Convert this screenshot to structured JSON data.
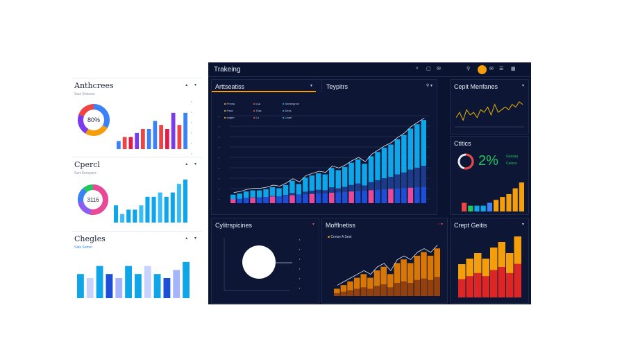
{
  "left": {
    "p1": {
      "title": "Anthcrees",
      "sub": "Sact Sntceas",
      "controls": "▴ ▾",
      "donut_label": "80%"
    },
    "p2": {
      "title": "Cpercl",
      "sub": "Sart Snncpers",
      "controls": "▴ ▾",
      "donut_label": "3116"
    },
    "p3": {
      "title": "Chegles",
      "legend": "Sats   Semer",
      "controls": "▴ ▾"
    }
  },
  "dash": {
    "title": "Trakeing",
    "header_icons": [
      "search-icon",
      "chat-icon",
      "mail-icon"
    ],
    "header_right_icons": [
      "lock-icon",
      "mail-icon",
      "menu-icon"
    ],
    "main": {
      "title": "Arttseatiss",
      "legend": [
        [
          "Pnnea",
          "Lsa",
          "Seeeegnnn"
        ],
        [
          "Paan",
          "Toss",
          "Dess"
        ],
        [
          "Inlgerr",
          "Lo",
          "Leael"
        ]
      ]
    },
    "tabs": {
      "topics": "Teypitrs"
    },
    "right1": {
      "title": "Cepit Menfanes"
    },
    "right2": {
      "title": "Ctitics",
      "value": "2%",
      "legend": [
        "Gessaa",
        "Ceinos"
      ]
    },
    "bl": {
      "title": "Cylitrspicines"
    },
    "bm": {
      "title": "Mofflnetiss",
      "legend": "Creise A Sest"
    },
    "br": {
      "title": "Crept Geitis"
    }
  },
  "chart_data": [
    {
      "type": "bar",
      "title": "Anthcrees",
      "values": [
        2,
        3,
        3,
        4,
        5,
        5,
        7,
        6,
        5,
        9,
        6,
        9
      ]
    },
    {
      "type": "bar",
      "title": "Cpercl",
      "values": [
        4,
        2,
        3,
        3,
        4,
        6,
        6,
        7,
        6,
        7,
        9,
        10
      ]
    },
    {
      "type": "bar",
      "title": "Chegles",
      "values": [
        6,
        5,
        8,
        6,
        5,
        8,
        6,
        8,
        6,
        5,
        7,
        9
      ]
    },
    {
      "type": "bar",
      "title": "Arttseatiss",
      "values": [
        8,
        9,
        11,
        12,
        12,
        13,
        15,
        14,
        17,
        21,
        18,
        24,
        26,
        28,
        27,
        33,
        31,
        34,
        38,
        41,
        37,
        44,
        48,
        52,
        55,
        60,
        64,
        70,
        74,
        78
      ]
    },
    {
      "type": "line",
      "title": "Cepit Menfanes",
      "values": [
        3,
        5,
        2,
        6,
        4,
        5,
        3,
        6,
        5,
        7,
        4,
        8,
        5,
        6,
        7,
        6,
        8,
        7,
        9,
        8
      ]
    },
    {
      "type": "bar",
      "title": "Ctitics",
      "values": [
        3,
        2,
        2,
        2,
        3,
        4,
        5,
        6,
        8,
        10
      ]
    },
    {
      "type": "bar",
      "title": "Mofflnetiss",
      "values": [
        2,
        3,
        4,
        5,
        6,
        5,
        7,
        8,
        6,
        9,
        10,
        9,
        11,
        12,
        11,
        13
      ]
    },
    {
      "type": "bar",
      "title": "Crept Geitis",
      "values": [
        6,
        7,
        8,
        7,
        9,
        10,
        8,
        11
      ]
    }
  ]
}
